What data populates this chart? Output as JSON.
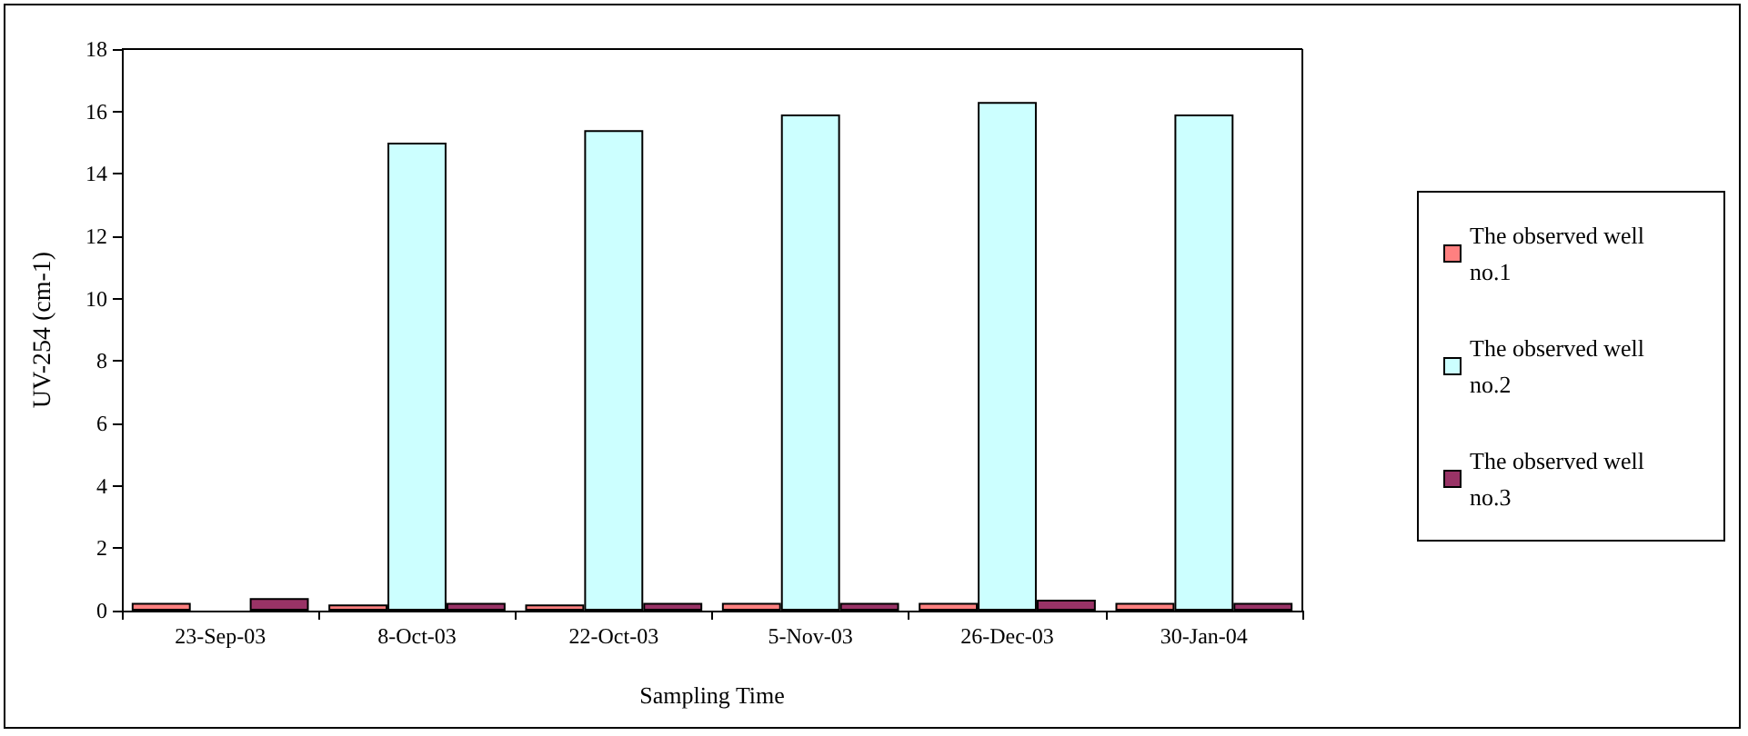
{
  "chart_data": {
    "type": "bar",
    "xlabel": "Sampling Time",
    "ylabel": "UV-254 (cm-1)",
    "categories": [
      "23-Sep-03",
      "8-Oct-03",
      "22-Oct-03",
      "5-Nov-03",
      "26-Dec-03",
      "30-Jan-04"
    ],
    "series": [
      {
        "name": "The observed well no.1",
        "color": "#ff8080",
        "values": [
          0.25,
          0.2,
          0.2,
          0.25,
          0.25,
          0.25
        ]
      },
      {
        "name": "The observed well no.2",
        "color": "#ccffff",
        "values": [
          null,
          15.0,
          15.4,
          15.9,
          16.3,
          15.9
        ]
      },
      {
        "name": "The observed well no.3",
        "color": "#993366",
        "values": [
          0.4,
          0.25,
          0.25,
          0.25,
          0.35,
          0.25
        ]
      }
    ],
    "ylim": [
      0,
      18
    ],
    "yticks": [
      0,
      2,
      4,
      6,
      8,
      10,
      12,
      14,
      16,
      18
    ],
    "grid": false,
    "legend": "right"
  }
}
